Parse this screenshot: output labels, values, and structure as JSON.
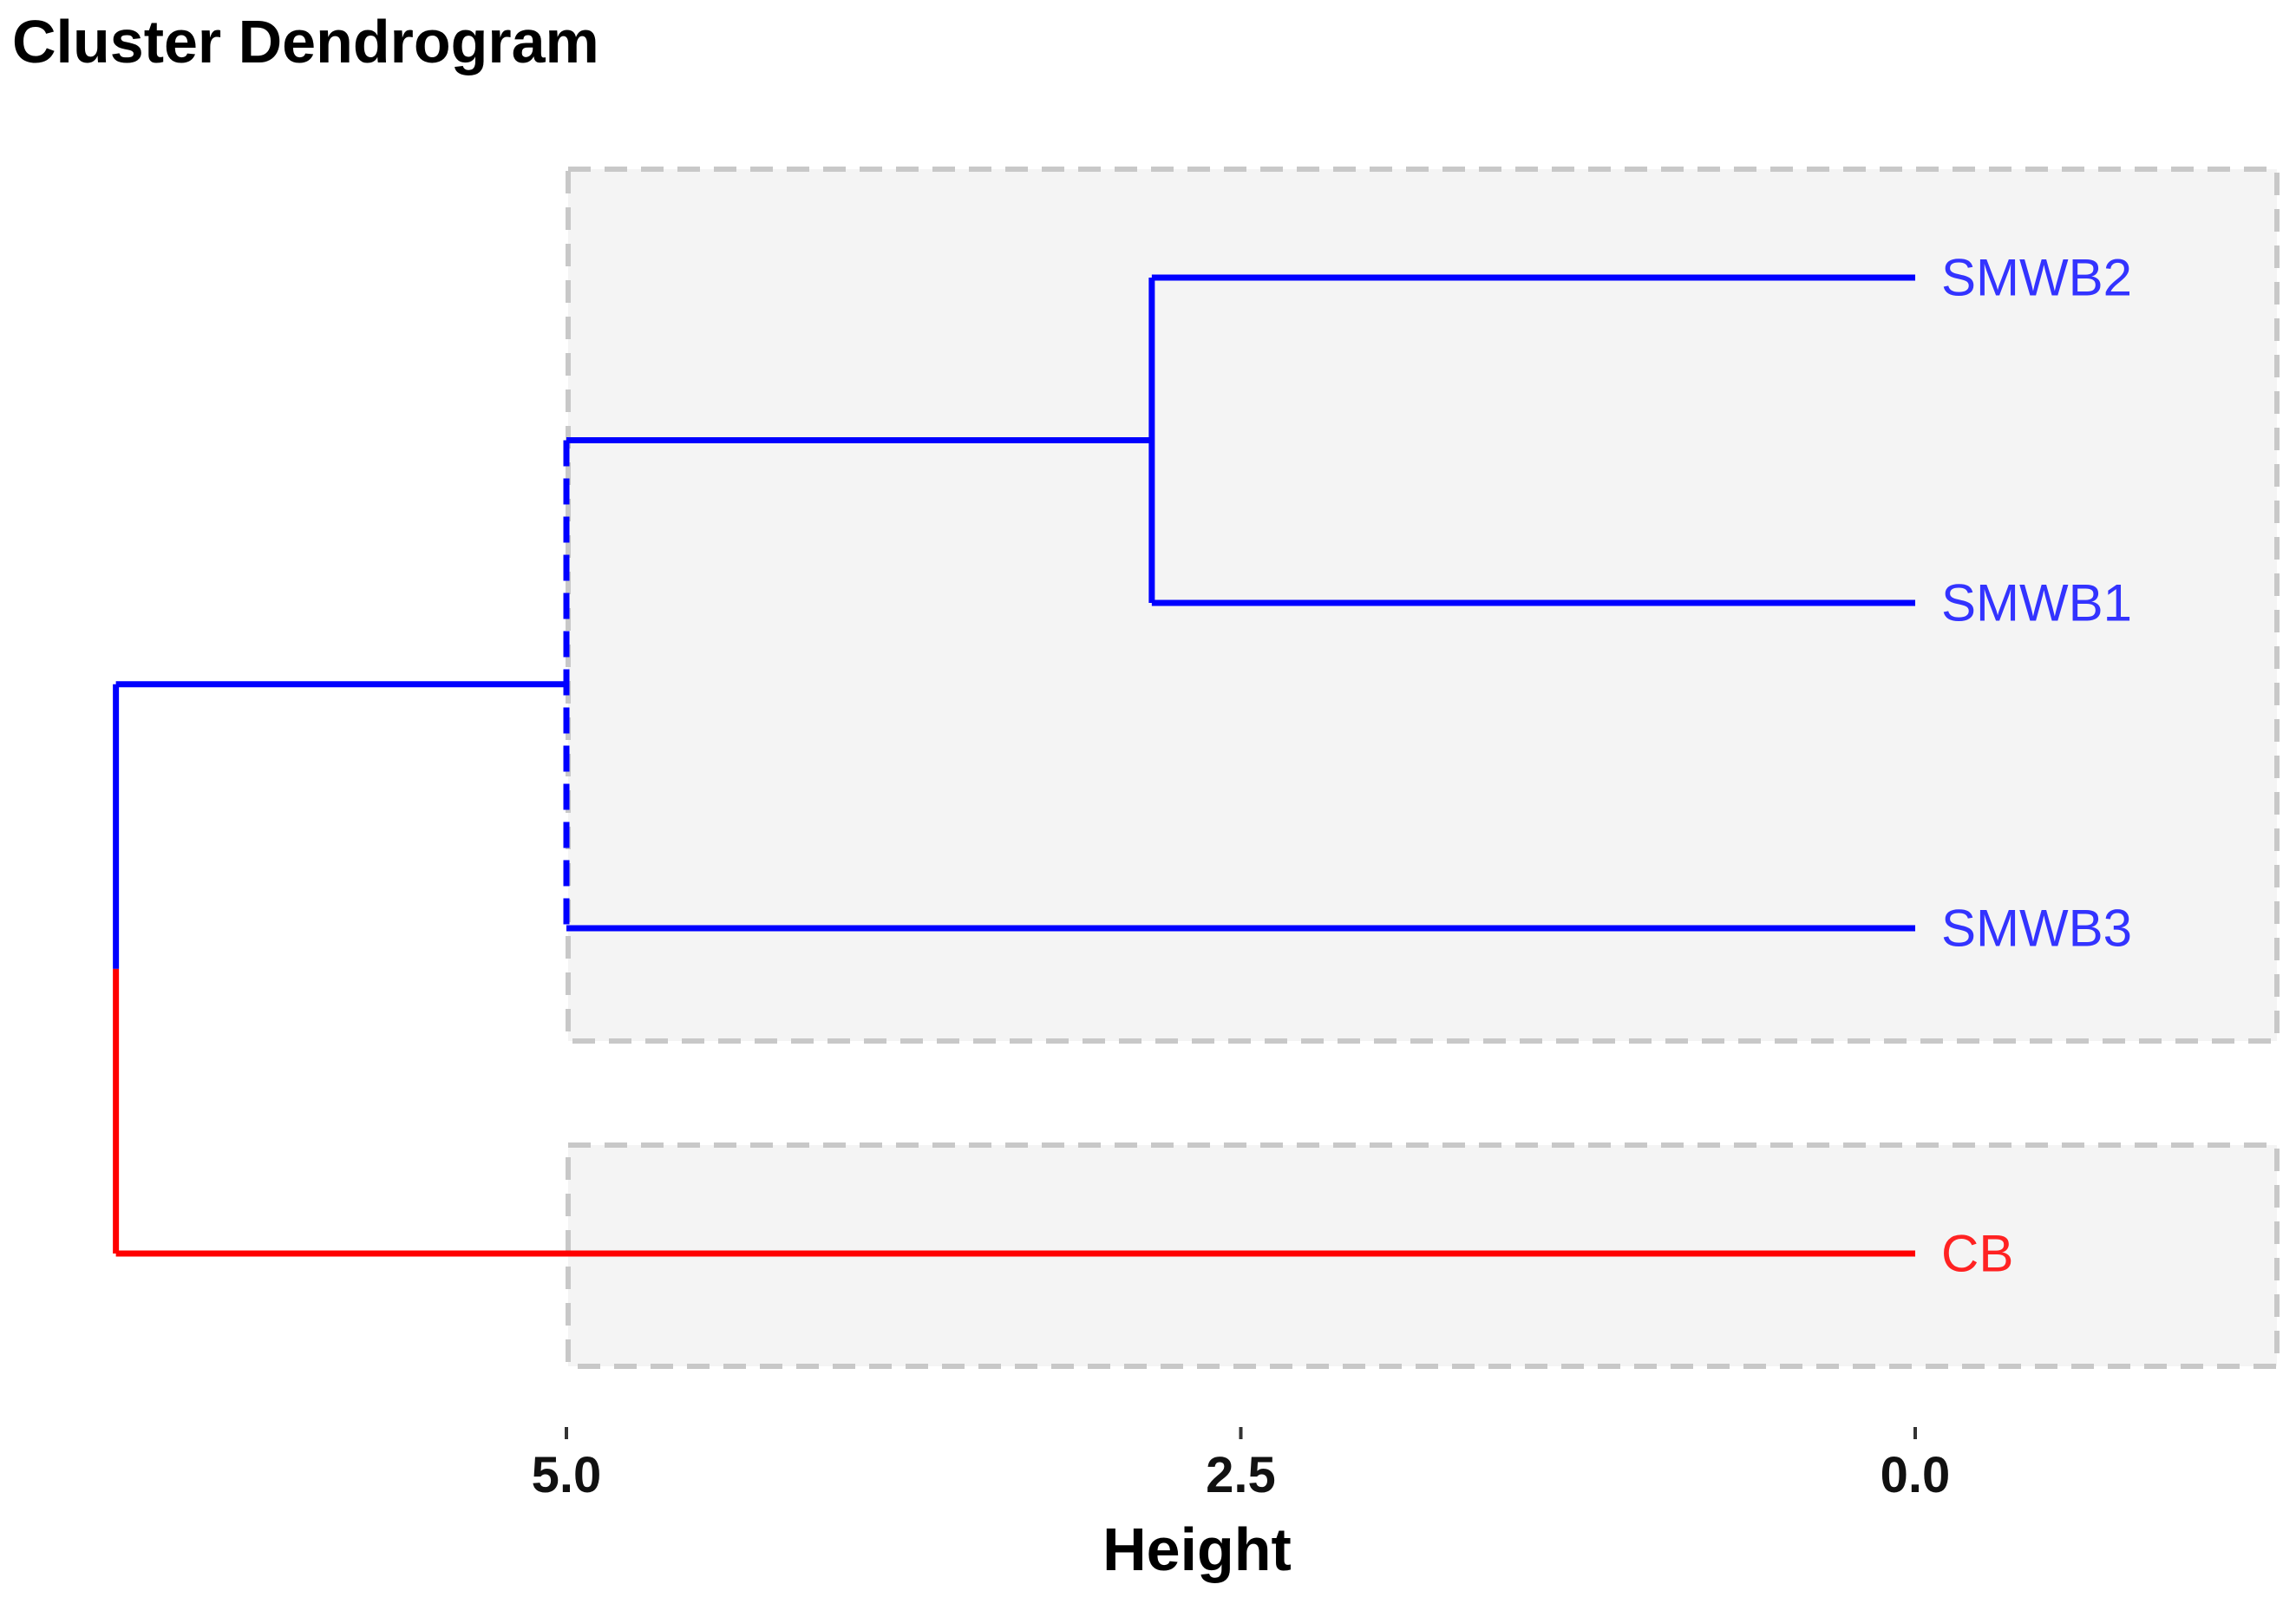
{
  "title": "Cluster Dendrogram",
  "chart_data": {
    "type": "dendrogram",
    "title": "Cluster Dendrogram",
    "xlabel": "Height",
    "ylabel": "",
    "orientation": "horizontal",
    "x_axis_reversed": true,
    "x_ticks": [
      "5.0",
      "2.5",
      "0.0"
    ],
    "x_tick_values": [
      5.0,
      2.5,
      0.0
    ],
    "leaves": [
      {
        "label": "SMWB2",
        "color": "#3333ff",
        "cluster": 1
      },
      {
        "label": "SMWB1",
        "color": "#3333ff",
        "cluster": 1
      },
      {
        "label": "SMWB3",
        "color": "#3333ff",
        "cluster": 1
      },
      {
        "label": "CB",
        "color": "#ff2222",
        "cluster": 2
      }
    ],
    "merges": [
      {
        "members": [
          "SMWB2",
          "SMWB1"
        ],
        "height": 2.83,
        "color": "#0000ff"
      },
      {
        "members": [
          "SMWB2",
          "SMWB1",
          "SMWB3"
        ],
        "height": 5.0,
        "color": "#0000ff"
      },
      {
        "members": [
          "SMWB2",
          "SMWB1",
          "SMWB3",
          "CB"
        ],
        "height": 6.67,
        "color_upper": "#0000ff",
        "color_lower": "#ff0000"
      }
    ],
    "clusters": [
      {
        "id": 1,
        "members": [
          "SMWB2",
          "SMWB1",
          "SMWB3"
        ],
        "rect_fill": "#f4f4f4",
        "rect_border": "#c8c8c8"
      },
      {
        "id": 2,
        "members": [
          "CB"
        ],
        "rect_fill": "#f4f4f4",
        "rect_border": "#c8c8c8"
      }
    ],
    "colors": {
      "branch_blue": "#0000ff",
      "branch_red": "#ff0000",
      "label_blue": "#3333ff",
      "label_red": "#ff2222"
    },
    "grid": false,
    "legend": "none"
  }
}
